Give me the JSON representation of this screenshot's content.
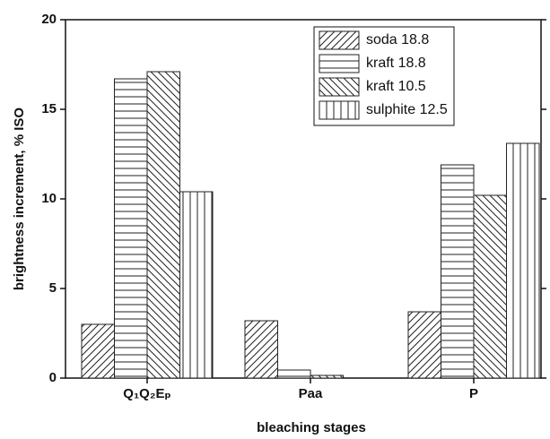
{
  "chart_data": {
    "type": "bar",
    "xlabel": "bleaching stages",
    "ylabel": "brightness increment, % ISO",
    "categories": [
      "Q₁Q₂Eₚ",
      "Paa",
      "P"
    ],
    "series": [
      {
        "name": "soda 18.8",
        "hatch": "/",
        "color": "#222222",
        "values": [
          3.0,
          3.2,
          3.7
        ]
      },
      {
        "name": "kraft 18.8",
        "hatch": "-",
        "color": "#222222",
        "values": [
          16.7,
          0.45,
          11.9
        ]
      },
      {
        "name": "kraft 10.5",
        "hatch": "\\",
        "color": "#222222",
        "values": [
          17.1,
          0.15,
          10.2
        ]
      },
      {
        "name": "sulphite 12.5",
        "hatch": "|",
        "color": "#222222",
        "values": [
          10.4,
          0,
          13.1
        ]
      }
    ],
    "ylim": [
      0,
      20
    ],
    "yticks": [
      0,
      5,
      10,
      15,
      20
    ],
    "grid": false
  }
}
